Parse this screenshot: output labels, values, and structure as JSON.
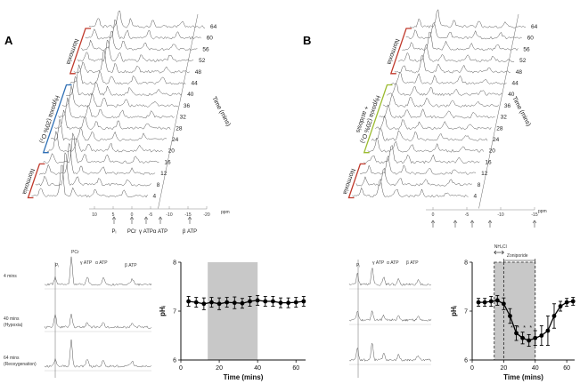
{
  "panels": {
    "A": {
      "label": "A",
      "time_axis_title": "Time (mins)",
      "time_labels": [
        "4",
        "8",
        "12",
        "16",
        "20",
        "24",
        "28",
        "32",
        "36",
        "40",
        "44",
        "48",
        "52",
        "56",
        "60",
        "64"
      ],
      "conditions": [
        {
          "text": "Normoxia",
          "color": "#c0392b",
          "from": 48,
          "to": 64
        },
        {
          "text": "Hypoxia (20% O₂)",
          "color": "#2e6fb5",
          "from": 20,
          "to": 44
        },
        {
          "text": "Normoxia",
          "color": "#c0392b",
          "from": 4,
          "to": 16
        }
      ],
      "ppm_ticks": [
        "10",
        "5",
        "0",
        "-5",
        "-10",
        "-15",
        "-20"
      ],
      "ppm_unit": "ppm",
      "peak_labels": [
        "Pᵢ",
        "PCr",
        "γ ATP",
        "α ATP",
        "β ATP"
      ]
    },
    "B": {
      "label": "B",
      "time_axis_title": "Time (mins)",
      "time_labels": [
        "4",
        "8",
        "12",
        "16",
        "20",
        "24",
        "28",
        "32",
        "36",
        "40",
        "44",
        "48",
        "52",
        "56",
        "60",
        "64"
      ],
      "conditions": [
        {
          "text": "Normoxia",
          "color": "#c0392b",
          "from": 48,
          "to": 64
        },
        {
          "text": "Hypoxia (20% O₂) + acidosis",
          "color": "#9bbb2f",
          "from": 20,
          "to": 44
        },
        {
          "text": "Normoxia",
          "color": "#c0392b",
          "from": 4,
          "to": 16
        }
      ],
      "ppm_ticks": [
        "0",
        "-5",
        "-10",
        "-15"
      ],
      "ppm_unit": "ppm"
    }
  },
  "spectra_small_A": {
    "peak_labels": [
      "PCr",
      "Pᵢ",
      "γ ATP",
      "α ATP",
      "β ATP"
    ],
    "rows": [
      "4 mins",
      "40 mins\n(Hypoxia)",
      "64 mins\n(Reoxygenation)"
    ]
  },
  "spectra_small_B": {
    "peak_labels": [
      "Pᵢ",
      "γ ATP",
      "α ATP",
      "β ATP"
    ]
  },
  "chart_data": [
    {
      "type": "line",
      "title": "",
      "xlabel": "Time (mins)",
      "ylabel": "pHᵢ",
      "xlim": [
        0,
        65
      ],
      "ylim": [
        6,
        8
      ],
      "xticks": [
        0,
        20,
        40,
        60
      ],
      "yticks": [
        6,
        7,
        8
      ],
      "shaded_region": [
        14,
        40
      ],
      "x": [
        4,
        8,
        12,
        16,
        20,
        24,
        28,
        32,
        36,
        40,
        44,
        48,
        52,
        56,
        60,
        64
      ],
      "series": [
        {
          "values": [
            7.2,
            7.18,
            7.15,
            7.18,
            7.15,
            7.18,
            7.17,
            7.16,
            7.2,
            7.22,
            7.2,
            7.2,
            7.17,
            7.17,
            7.18,
            7.2
          ],
          "err": [
            0.1,
            0.1,
            0.12,
            0.1,
            0.12,
            0.1,
            0.12,
            0.1,
            0.1,
            0.1,
            0.1,
            0.1,
            0.1,
            0.1,
            0.1,
            0.1
          ]
        }
      ]
    },
    {
      "type": "line",
      "title": "",
      "xlabel": "Time (mins)",
      "ylabel": "pHᵢ",
      "xlim": [
        0,
        65
      ],
      "ylim": [
        6,
        8
      ],
      "xticks": [
        0,
        20,
        40,
        60
      ],
      "yticks": [
        6,
        7,
        8
      ],
      "shaded_region": [
        14,
        40
      ],
      "dashed_region": [
        20,
        40
      ],
      "annotations": [
        "NH₄Cl",
        "Zoniporide"
      ],
      "x": [
        4,
        8,
        12,
        16,
        20,
        24,
        28,
        32,
        36,
        40,
        44,
        48,
        52,
        56,
        60,
        64
      ],
      "series": [
        {
          "values": [
            7.18,
            7.18,
            7.2,
            7.22,
            7.15,
            6.9,
            6.55,
            6.45,
            6.4,
            6.45,
            6.5,
            6.6,
            6.9,
            7.1,
            7.18,
            7.2
          ],
          "err": [
            0.08,
            0.08,
            0.1,
            0.1,
            0.12,
            0.15,
            0.15,
            0.12,
            0.12,
            0.15,
            0.2,
            0.3,
            0.25,
            0.1,
            0.08,
            0.08
          ]
        }
      ]
    }
  ]
}
